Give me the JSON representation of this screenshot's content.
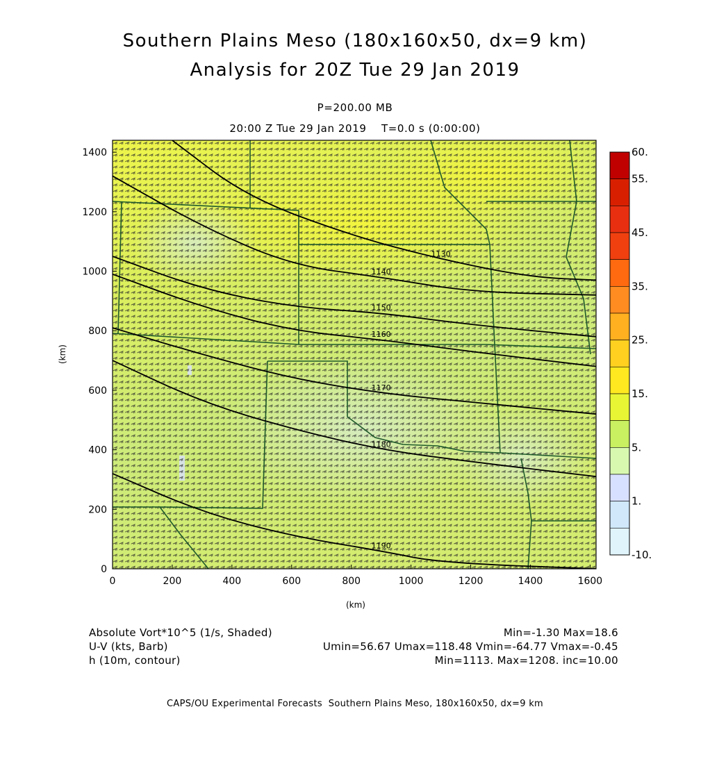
{
  "header": {
    "title_line1": "Southern Plains Meso (180x160x50, dx=9 km)",
    "title_line2": "Analysis for 20Z Tue 29 Jan 2019",
    "level": "P=200.00 MB",
    "valid_time": "20:00 Z Tue 29 Jan 2019    T=0.0 s (0:00:00)"
  },
  "chart_data": {
    "type": "heatmap",
    "xlabel": "(km)",
    "ylabel": "(km)",
    "xlim": [
      0,
      1620
    ],
    "ylim": [
      0,
      1440
    ],
    "x_ticks": [
      0,
      200,
      400,
      600,
      800,
      1000,
      1200,
      1400,
      1600
    ],
    "y_ticks": [
      0,
      200,
      400,
      600,
      800,
      1000,
      1200,
      1400
    ],
    "colorbar": {
      "labels": [
        "60.",
        "55.",
        "45.",
        "35.",
        "25.",
        "15.",
        "5.",
        "1.",
        "-10."
      ],
      "colors": [
        "#c00000",
        "#d82000",
        "#e83010",
        "#f04010",
        "#ff6a10",
        "#ff8c20",
        "#ffb020",
        "#ffd020",
        "#ffe820",
        "#e8f535",
        "#c8f060",
        "#d8f8b0",
        "#d8e0ff",
        "#d0e8fa",
        "#e0f4fc"
      ]
    },
    "contours": [
      {
        "label": "1130",
        "points": [
          [
            200,
            1440
          ],
          [
            450,
            1250
          ],
          [
            800,
            1120
          ],
          [
            1100,
            1040
          ],
          [
            1400,
            980
          ],
          [
            1620,
            970
          ]
        ]
      },
      {
        "label": "1140",
        "points": [
          [
            0,
            1320
          ],
          [
            300,
            1150
          ],
          [
            600,
            1020
          ],
          [
            900,
            980
          ],
          [
            1200,
            930
          ],
          [
            1620,
            920
          ]
        ]
      },
      {
        "label": "1150",
        "points": [
          [
            0,
            1050
          ],
          [
            300,
            940
          ],
          [
            600,
            880
          ],
          [
            900,
            860
          ],
          [
            1200,
            820
          ],
          [
            1620,
            780
          ]
        ]
      },
      {
        "label": "1160",
        "points": [
          [
            0,
            990
          ],
          [
            300,
            880
          ],
          [
            600,
            800
          ],
          [
            900,
            770
          ],
          [
            1200,
            730
          ],
          [
            1620,
            680
          ]
        ]
      },
      {
        "label": "1170",
        "points": [
          [
            0,
            810
          ],
          [
            300,
            720
          ],
          [
            600,
            640
          ],
          [
            900,
            590
          ],
          [
            1200,
            560
          ],
          [
            1620,
            520
          ]
        ]
      },
      {
        "label": "1180",
        "points": [
          [
            0,
            700
          ],
          [
            300,
            560
          ],
          [
            600,
            470
          ],
          [
            900,
            400
          ],
          [
            1200,
            360
          ],
          [
            1620,
            310
          ]
        ]
      },
      {
        "label": "1190",
        "points": [
          [
            0,
            320
          ],
          [
            300,
            190
          ],
          [
            600,
            110
          ],
          [
            900,
            60
          ],
          [
            1100,
            20
          ],
          [
            1620,
            0
          ]
        ]
      }
    ]
  },
  "legend": {
    "field1": "Absolute Vort*10^5 (1/s, Shaded)",
    "field1_stats": "Min=-1.30 Max=18.6",
    "field2": "U-V (kts, Barb)",
    "field2_stats": "Umin=56.67 Umax=118.48 Vmin=-64.77 Vmax=-0.45",
    "field3": "h (10m, contour)",
    "field3_stats": "Min=1113. Max=1208. inc=10.00"
  },
  "credit": "CAPS/OU Experimental Forecasts  Southern Plains Meso, 180x160x50, dx=9 km"
}
